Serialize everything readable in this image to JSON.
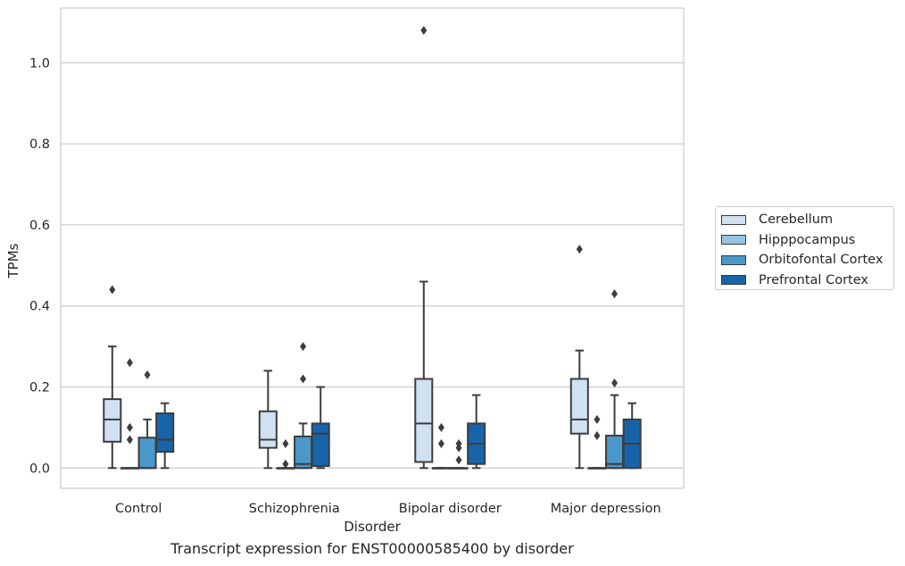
{
  "caption": "Transcript expression for ENST00000585400 by disorder",
  "chart_data": {
    "type": "boxplot",
    "xlabel": "Disorder",
    "ylabel": "TPMs",
    "ylim": [
      -0.05,
      1.135
    ],
    "yticks": [
      0.0,
      0.2,
      0.4,
      0.6,
      0.8,
      1.0
    ],
    "ytick_labels": [
      "0.0",
      "0.2",
      "0.4",
      "0.6",
      "0.8",
      "1.0"
    ],
    "grid": "horizontal",
    "legend_position": "right, outside plot",
    "categories": [
      "Control",
      "Schizophrenia",
      "Bipolar disorder",
      "Major depression"
    ],
    "series": [
      {
        "name": "Cerebellum",
        "color": "#d0e1f2",
        "boxes": [
          {
            "whislo": 0.0,
            "q1": 0.065,
            "med": 0.12,
            "q3": 0.17,
            "whishi": 0.3,
            "fliers": [
              0.44
            ]
          },
          {
            "whislo": 0.0,
            "q1": 0.05,
            "med": 0.07,
            "q3": 0.14,
            "whishi": 0.24,
            "fliers": []
          },
          {
            "whislo": 0.0,
            "q1": 0.015,
            "med": 0.11,
            "q3": 0.22,
            "whishi": 0.46,
            "fliers": [
              1.08
            ]
          },
          {
            "whislo": 0.0,
            "q1": 0.085,
            "med": 0.12,
            "q3": 0.22,
            "whishi": 0.29,
            "fliers": [
              0.54
            ]
          }
        ]
      },
      {
        "name": "Hipppocampus",
        "color": "#94c4df",
        "boxes": [
          {
            "whislo": 0.0,
            "q1": 0.0,
            "med": 0.0,
            "q3": 0.0,
            "whishi": 0.0,
            "fliers": [
              0.07,
              0.1,
              0.26
            ]
          },
          {
            "whislo": 0.0,
            "q1": 0.0,
            "med": 0.0,
            "q3": 0.0,
            "whishi": 0.0,
            "fliers": [
              0.01,
              0.06
            ]
          },
          {
            "whislo": 0.0,
            "q1": 0.0,
            "med": 0.0,
            "q3": 0.0,
            "whishi": 0.0,
            "fliers": [
              0.06,
              0.1
            ]
          },
          {
            "whislo": 0.0,
            "q1": 0.0,
            "med": 0.0,
            "q3": 0.0,
            "whishi": 0.0,
            "fliers": [
              0.08,
              0.12
            ]
          }
        ]
      },
      {
        "name": "Orbitofontal Cortex",
        "color": "#4a98c9",
        "boxes": [
          {
            "whislo": 0.0,
            "q1": 0.0,
            "med": 0.0,
            "q3": 0.075,
            "whishi": 0.12,
            "fliers": [
              0.23
            ]
          },
          {
            "whislo": 0.0,
            "q1": 0.0,
            "med": 0.01,
            "q3": 0.078,
            "whishi": 0.11,
            "fliers": [
              0.22,
              0.3
            ]
          },
          {
            "whislo": 0.0,
            "q1": 0.0,
            "med": 0.0,
            "q3": 0.0,
            "whishi": 0.0,
            "fliers": [
              0.02,
              0.05,
              0.06
            ]
          },
          {
            "whislo": 0.0,
            "q1": 0.0,
            "med": 0.01,
            "q3": 0.08,
            "whishi": 0.18,
            "fliers": [
              0.21,
              0.43
            ]
          }
        ]
      },
      {
        "name": "Prefrontal Cortex",
        "color": "#1764ab",
        "boxes": [
          {
            "whislo": 0.0,
            "q1": 0.04,
            "med": 0.07,
            "q3": 0.135,
            "whishi": 0.16,
            "fliers": []
          },
          {
            "whislo": 0.0,
            "q1": 0.005,
            "med": 0.085,
            "q3": 0.11,
            "whishi": 0.2,
            "fliers": []
          },
          {
            "whislo": 0.0,
            "q1": 0.01,
            "med": 0.06,
            "q3": 0.11,
            "whishi": 0.18,
            "fliers": []
          },
          {
            "whislo": 0.0,
            "q1": 0.0,
            "med": 0.06,
            "q3": 0.12,
            "whishi": 0.16,
            "fliers": []
          }
        ]
      }
    ]
  }
}
